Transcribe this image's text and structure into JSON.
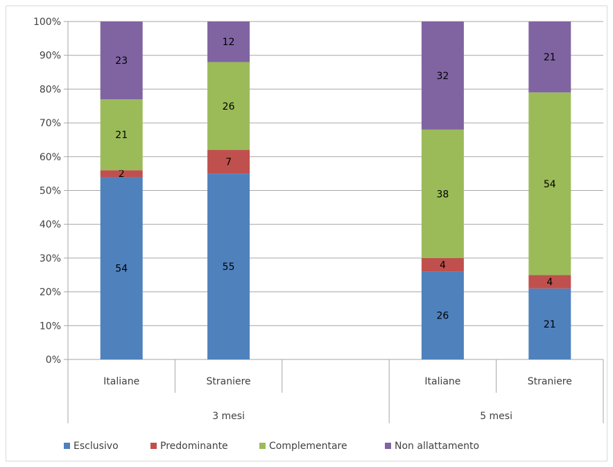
{
  "chart_data": {
    "type": "bar",
    "stacked": true,
    "percent_stacked": true,
    "groups": [
      {
        "label": "3 mesi",
        "categories": [
          "Italiane",
          "Straniere",
          ""
        ]
      },
      {
        "label": "5 mesi",
        "categories": [
          "Italiane",
          "Straniere"
        ]
      }
    ],
    "categories": [
      "Italiane",
      "Straniere",
      "",
      "Italiane",
      "Straniere"
    ],
    "series": [
      {
        "name": "Esclusivo",
        "color": "#4f81bd",
        "values": [
          54,
          55,
          null,
          26,
          21
        ]
      },
      {
        "name": "Predominante",
        "color": "#c0504d",
        "values": [
          2,
          7,
          null,
          4,
          4
        ]
      },
      {
        "name": "Complementare",
        "color": "#9bbb59",
        "values": [
          21,
          26,
          null,
          38,
          54
        ]
      },
      {
        "name": "Non allattamento",
        "color": "#8064a2",
        "values": [
          23,
          12,
          null,
          32,
          21
        ]
      }
    ],
    "y_ticks": [
      "0%",
      "10%",
      "20%",
      "30%",
      "40%",
      "50%",
      "60%",
      "70%",
      "80%",
      "90%",
      "100%"
    ],
    "ylim": [
      0,
      100
    ],
    "grid": true,
    "legend_position": "bottom"
  }
}
